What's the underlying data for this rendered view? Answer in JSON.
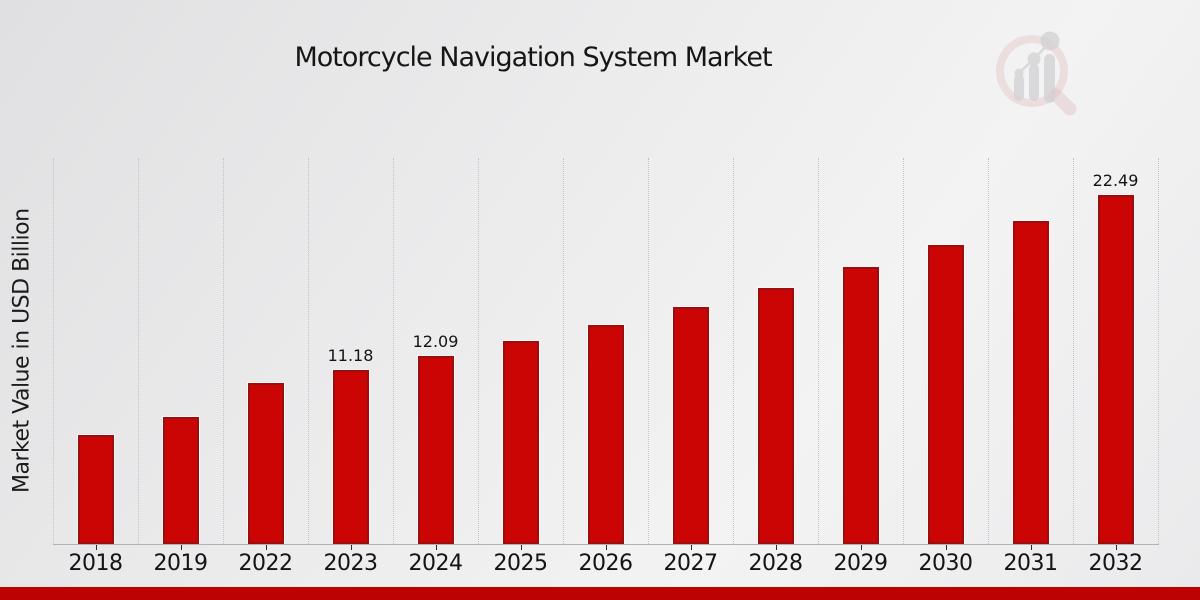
{
  "chart_data": {
    "type": "bar",
    "title": "Motorcycle Navigation System Market",
    "xlabel": "",
    "ylabel": "Market Value in USD Billion",
    "categories": [
      "2018",
      "2019",
      "2022",
      "2023",
      "2024",
      "2025",
      "2026",
      "2027",
      "2028",
      "2029",
      "2030",
      "2031",
      "2032"
    ],
    "values": [
      7.0,
      8.18,
      10.38,
      11.18,
      12.09,
      13.07,
      14.12,
      15.26,
      16.49,
      17.83,
      19.26,
      20.82,
      22.49
    ],
    "data_labels": {
      "2023": "11.18",
      "2024": "12.09",
      "2032": "22.49"
    },
    "ylim": [
      0,
      24.9
    ],
    "grid": "vertical-dotted-column-separators",
    "legend": "none",
    "bar_color": "#cb0404",
    "bar_border_color": "#9e0d0d",
    "bottom_strip_color": "#bd0202",
    "background": "light-gray-gradient"
  },
  "watermark": {
    "name": "market-research-future-logo",
    "description": "faint magnifier over ascending bar chart with trend dots",
    "ring_color": "#c97f7f",
    "bars_color": "#b4b4ba"
  }
}
